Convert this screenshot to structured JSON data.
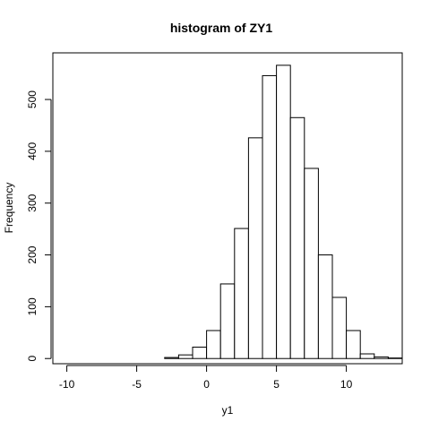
{
  "chart_data": {
    "type": "bar",
    "title": "histogram of ZY1",
    "xlabel": "y1",
    "ylabel": "Frequency",
    "xlim": [
      -11,
      14
    ],
    "ylim": [
      -10,
      590
    ],
    "grid": false,
    "bin_width": 1,
    "bins": [
      {
        "start": -3,
        "end": -2,
        "count": 2
      },
      {
        "start": -2,
        "end": -1,
        "count": 7
      },
      {
        "start": -1,
        "end": 0,
        "count": 22
      },
      {
        "start": 0,
        "end": 1,
        "count": 54
      },
      {
        "start": 1,
        "end": 2,
        "count": 144
      },
      {
        "start": 2,
        "end": 3,
        "count": 251
      },
      {
        "start": 3,
        "end": 4,
        "count": 426
      },
      {
        "start": 4,
        "end": 5,
        "count": 546
      },
      {
        "start": 5,
        "end": 6,
        "count": 566
      },
      {
        "start": 6,
        "end": 7,
        "count": 465
      },
      {
        "start": 7,
        "end": 8,
        "count": 367
      },
      {
        "start": 8,
        "end": 9,
        "count": 200
      },
      {
        "start": 9,
        "end": 10,
        "count": 118
      },
      {
        "start": 10,
        "end": 11,
        "count": 54
      },
      {
        "start": 11,
        "end": 12,
        "count": 9
      },
      {
        "start": 12,
        "end": 13,
        "count": 3
      },
      {
        "start": 13,
        "end": 14,
        "count": 1
      }
    ],
    "x_ticks": [
      -10,
      -5,
      0,
      5,
      10
    ],
    "x_tick_labels": [
      "-10",
      "-5",
      "0",
      "5",
      "10"
    ],
    "y_ticks": [
      0,
      100,
      200,
      300,
      400,
      500
    ],
    "y_tick_labels": [
      "0",
      "100",
      "200",
      "300",
      "400",
      "500"
    ]
  }
}
